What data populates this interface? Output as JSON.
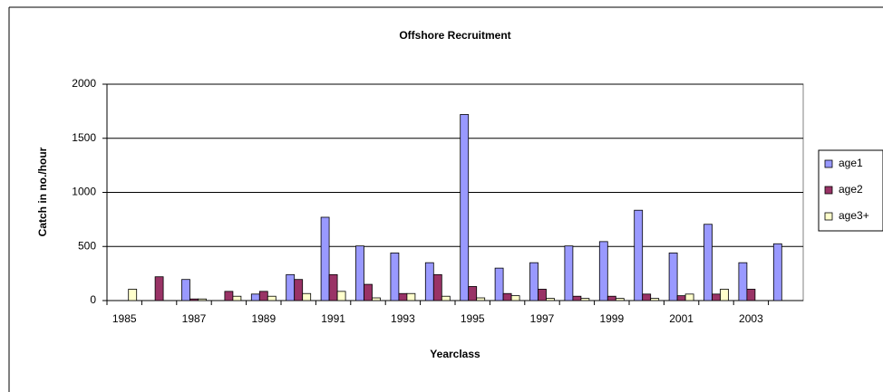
{
  "chart_data": {
    "type": "bar",
    "title": "Offshore Recruitment",
    "x_label": "Yearclass",
    "y_label": "Catch in no./hour",
    "categories": [
      1985,
      null,
      1987,
      null,
      1989,
      null,
      1991,
      null,
      1993,
      null,
      1995,
      null,
      1997,
      null,
      1999,
      null,
      2001,
      null,
      2003,
      null
    ],
    "series": [
      {
        "name": "age1",
        "color": "#9999ff",
        "values": [
          0,
          0,
          195,
          0,
          60,
          240,
          770,
          505,
          440,
          350,
          1720,
          300,
          350,
          505,
          545,
          835,
          440,
          705,
          350,
          525
        ]
      },
      {
        "name": "age2",
        "color": "#993366",
        "values": [
          0,
          220,
          15,
          85,
          85,
          195,
          240,
          150,
          65,
          240,
          130,
          65,
          105,
          40,
          40,
          60,
          45,
          60,
          105,
          0
        ]
      },
      {
        "name": "age3+",
        "color": "#ffffcc",
        "values": [
          105,
          0,
          15,
          40,
          40,
          65,
          85,
          25,
          65,
          40,
          25,
          45,
          20,
          20,
          20,
          20,
          60,
          105,
          0,
          0
        ]
      }
    ],
    "ylim": [
      0,
      2000
    ],
    "yticks": [
      0,
      500,
      1000,
      1500,
      2000
    ],
    "grid": true,
    "legend": "right"
  }
}
